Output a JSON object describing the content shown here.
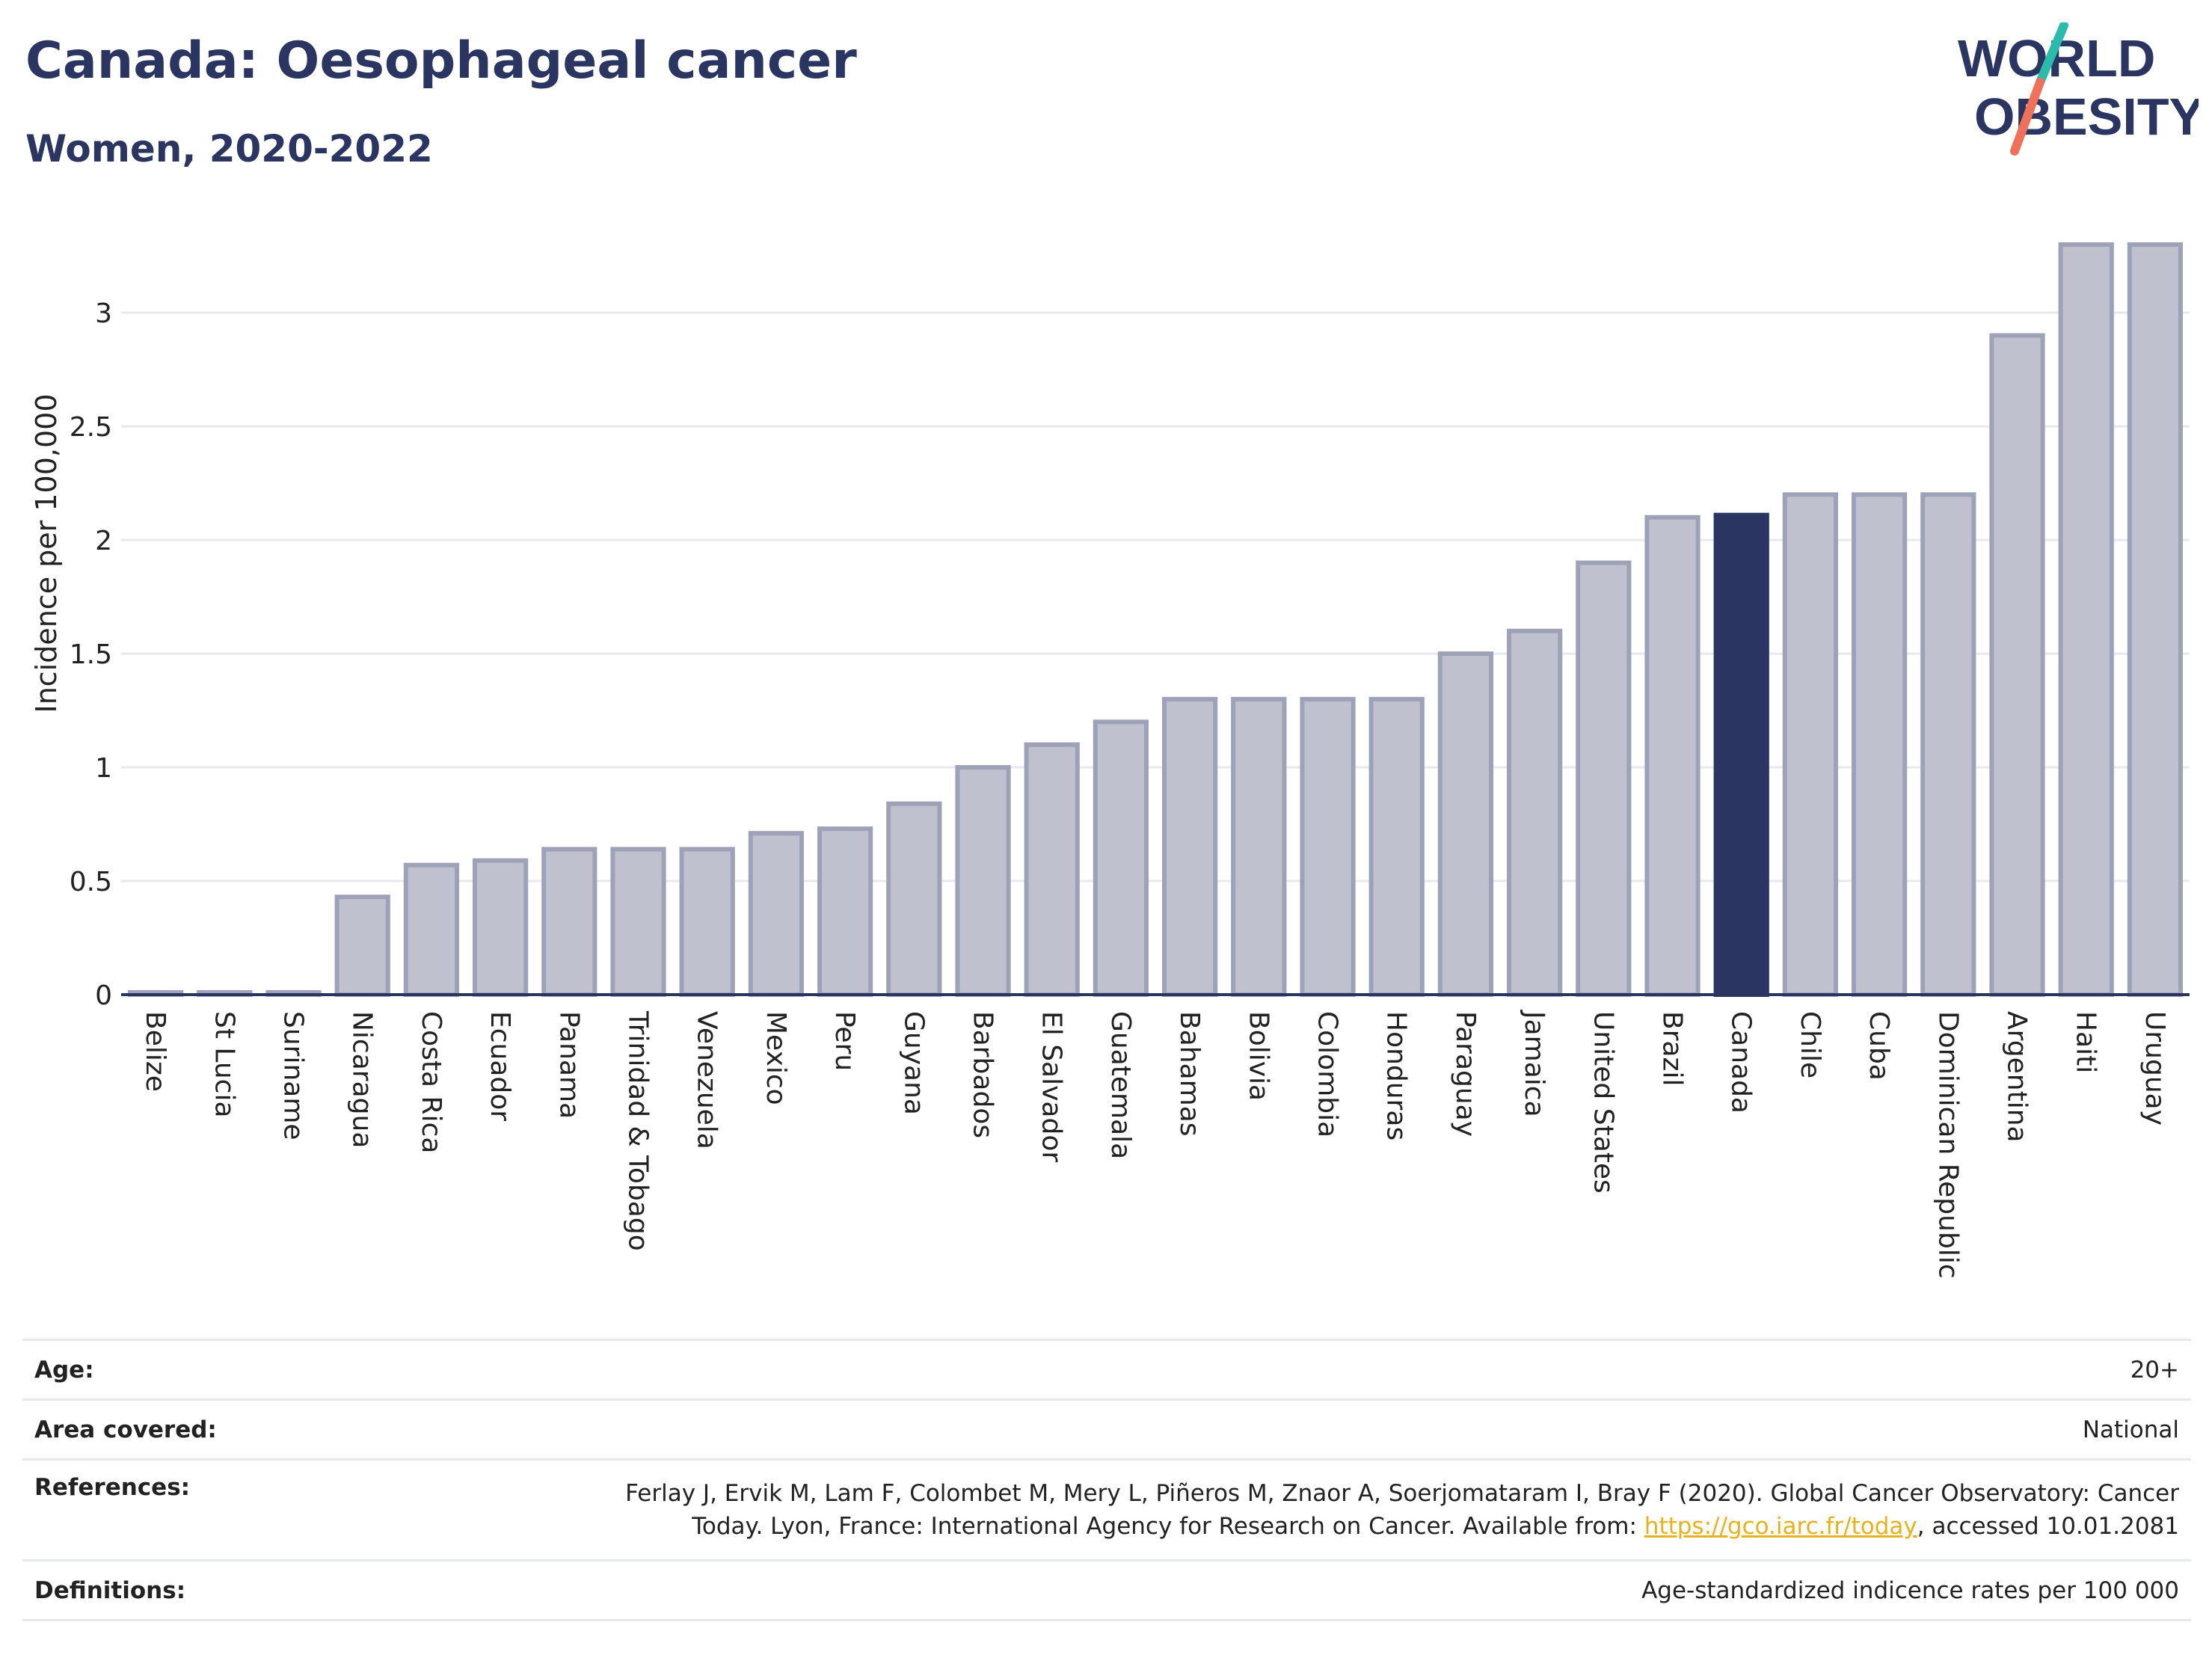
{
  "header": {
    "title": "Canada: Oesophageal cancer",
    "subtitle": "Women, 2020-2022"
  },
  "logo": {
    "line1": "WORLD",
    "line2": "OBESITY",
    "slash_colors": [
      "#2bbbad",
      "#f0705a"
    ],
    "text_color": "#2b3561"
  },
  "chart_data": {
    "type": "bar",
    "ylabel": "Incidence per 100,000",
    "ylim": [
      0,
      3.3
    ],
    "yticks": [
      0,
      0.5,
      1,
      1.5,
      2,
      2.5,
      3
    ],
    "ytick_labels": [
      "0",
      "0.5",
      "1",
      "1.5",
      "2",
      "2.5",
      "3"
    ],
    "grid": true,
    "highlight": "Canada",
    "colors": {
      "bar": "#bfc2ce",
      "bar_edge": "#9ea2b8",
      "highlight": "#2b3561",
      "grid": "#e8e9ee"
    },
    "categories": [
      "Belize",
      "St Lucia",
      "Suriname",
      "Nicaragua",
      "Costa Rica",
      "Ecuador",
      "Panama",
      "Trinidad & Tobago",
      "Venezuela",
      "Mexico",
      "Peru",
      "Guyana",
      "Barbados",
      "El Salvador",
      "Guatemala",
      "Bahamas",
      "Bolivia",
      "Colombia",
      "Honduras",
      "Paraguay",
      "Jamaica",
      "United States",
      "Brazil",
      "Canada",
      "Chile",
      "Cuba",
      "Dominican Republic",
      "Argentina",
      "Haiti",
      "Uruguay"
    ],
    "values": [
      0.01,
      0.01,
      0.01,
      0.43,
      0.57,
      0.59,
      0.64,
      0.64,
      0.64,
      0.71,
      0.73,
      0.84,
      1.0,
      1.1,
      1.2,
      1.3,
      1.3,
      1.3,
      1.3,
      1.5,
      1.6,
      1.9,
      2.1,
      2.11,
      2.2,
      2.2,
      2.2,
      2.9,
      3.3,
      3.3
    ]
  },
  "info": {
    "age_label": "Age:",
    "age_value": "20+",
    "area_label": "Area covered:",
    "area_value": "National",
    "refs_label": "References:",
    "refs_line1": "Ferlay J, Ervik M, Lam F, Colombet M, Mery L, Piñeros M, Znaor A, Soerjomataram I, Bray F (2020). Global Cancer Observatory: Cancer",
    "refs_line2_pre": "Today. Lyon, France: International Agency for Research on Cancer. Available from: ",
    "refs_link": "https://gco.iarc.fr/today",
    "refs_line2_post": ", accessed 10.01.2081",
    "defs_label": "Definitions:",
    "defs_value": "Age-standardized indicence rates per 100 000"
  }
}
